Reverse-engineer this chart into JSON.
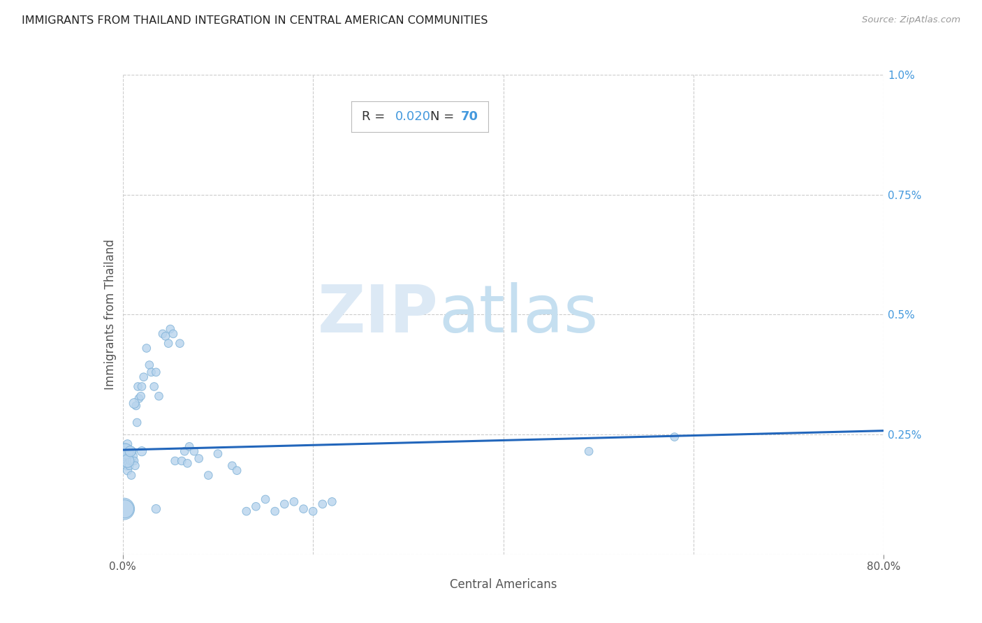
{
  "title": "IMMIGRANTS FROM THAILAND INTEGRATION IN CENTRAL AMERICAN COMMUNITIES",
  "source": "Source: ZipAtlas.com",
  "xlabel": "Central Americans",
  "ylabel": "Immigrants from Thailand",
  "R": "0.020",
  "N": "70",
  "x_min": 0.0,
  "x_max": 0.8,
  "y_min": 0.0,
  "y_max": 0.01,
  "scatter_color": "#b8d4ed",
  "scatter_edge_color": "#7aafd6",
  "line_color": "#2266bb",
  "title_color": "#222222",
  "source_color": "#999999",
  "value_color": "#4499dd",
  "label_color": "#333333",
  "grid_color": "#cccccc",
  "right_tick_color": "#4499dd",
  "points_x": [
    0.001,
    0.002,
    0.002,
    0.003,
    0.003,
    0.004,
    0.004,
    0.005,
    0.005,
    0.006,
    0.006,
    0.007,
    0.007,
    0.008,
    0.009,
    0.01,
    0.01,
    0.011,
    0.012,
    0.013,
    0.014,
    0.015,
    0.016,
    0.017,
    0.019,
    0.02,
    0.022,
    0.025,
    0.028,
    0.03,
    0.033,
    0.035,
    0.038,
    0.042,
    0.045,
    0.048,
    0.05,
    0.053,
    0.055,
    0.06,
    0.062,
    0.065,
    0.068,
    0.07,
    0.075,
    0.08,
    0.09,
    0.1,
    0.115,
    0.12,
    0.13,
    0.14,
    0.15,
    0.16,
    0.17,
    0.18,
    0.19,
    0.2,
    0.21,
    0.22,
    0.001,
    0.002,
    0.003,
    0.005,
    0.008,
    0.012,
    0.02,
    0.035,
    0.49,
    0.58
  ],
  "points_y": [
    0.00215,
    0.0021,
    0.00195,
    0.0022,
    0.00205,
    0.00185,
    0.0021,
    0.00175,
    0.0023,
    0.00205,
    0.0019,
    0.002,
    0.00185,
    0.00195,
    0.00165,
    0.00195,
    0.00215,
    0.00205,
    0.00195,
    0.00185,
    0.0031,
    0.00275,
    0.0035,
    0.00325,
    0.0033,
    0.0035,
    0.0037,
    0.0043,
    0.00395,
    0.0038,
    0.0035,
    0.0038,
    0.0033,
    0.0046,
    0.00455,
    0.0044,
    0.0047,
    0.0046,
    0.00195,
    0.0044,
    0.00195,
    0.00215,
    0.0019,
    0.00225,
    0.00215,
    0.002,
    0.00165,
    0.0021,
    0.00185,
    0.00175,
    0.0009,
    0.001,
    0.00115,
    0.0009,
    0.00105,
    0.0011,
    0.00095,
    0.0009,
    0.00105,
    0.0011,
    0.00095,
    0.00095,
    0.00215,
    0.00195,
    0.00215,
    0.00315,
    0.00215,
    0.00095,
    0.00215,
    0.00245
  ],
  "point_sizes": [
    300,
    200,
    150,
    100,
    100,
    80,
    80,
    80,
    80,
    80,
    70,
    70,
    70,
    70,
    70,
    70,
    70,
    70,
    70,
    70,
    70,
    70,
    70,
    70,
    70,
    70,
    70,
    70,
    70,
    70,
    70,
    70,
    70,
    70,
    70,
    70,
    70,
    70,
    70,
    70,
    70,
    70,
    70,
    70,
    70,
    70,
    70,
    70,
    70,
    70,
    70,
    70,
    70,
    70,
    70,
    70,
    70,
    70,
    70,
    70,
    500,
    350,
    250,
    180,
    120,
    100,
    90,
    80,
    70,
    70
  ],
  "line_x": [
    0.0,
    0.8
  ],
  "line_y": [
    0.00218,
    0.00258
  ]
}
